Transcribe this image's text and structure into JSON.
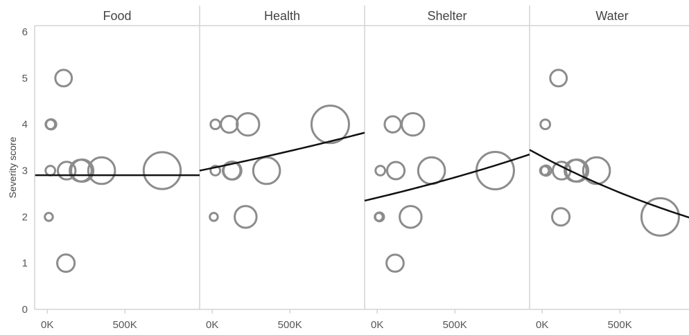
{
  "chart_data": {
    "type": "scatter",
    "ylabel": "Severity score",
    "xlabel": "",
    "ylim": [
      0,
      6
    ],
    "yticks": [
      0,
      1,
      2,
      3,
      4,
      5,
      6
    ],
    "xlim": [
      -50000,
      950000
    ],
    "xticks": [
      {
        "value": 0,
        "label": "0K"
      },
      {
        "value": 500000,
        "label": "500K"
      }
    ],
    "size_encoding": "x",
    "point_color": "#8c8c8c",
    "trend_color": "#111111",
    "facets": [
      {
        "name": "Food",
        "points": [
          {
            "x": 10000,
            "y": 2
          },
          {
            "x": 20000,
            "y": 3
          },
          {
            "x": 20000,
            "y": 4
          },
          {
            "x": 25000,
            "y": 4
          },
          {
            "x": 105000,
            "y": 5
          },
          {
            "x": 120000,
            "y": 1
          },
          {
            "x": 125000,
            "y": 3
          },
          {
            "x": 215000,
            "y": 3
          },
          {
            "x": 225000,
            "y": 3
          },
          {
            "x": 350000,
            "y": 3
          },
          {
            "x": 740000,
            "y": 3
          }
        ],
        "trend": {
          "start": 2.9,
          "end": 2.9,
          "type": "exp"
        }
      },
      {
        "name": "Health",
        "points": [
          {
            "x": 10000,
            "y": 2
          },
          {
            "x": 20000,
            "y": 3
          },
          {
            "x": 20000,
            "y": 4
          },
          {
            "x": 110000,
            "y": 4
          },
          {
            "x": 125000,
            "y": 3
          },
          {
            "x": 130000,
            "y": 3
          },
          {
            "x": 215000,
            "y": 2
          },
          {
            "x": 230000,
            "y": 4
          },
          {
            "x": 350000,
            "y": 3
          },
          {
            "x": 760000,
            "y": 4
          }
        ],
        "trend": {
          "start": 3.0,
          "end": 3.82,
          "type": "exp"
        }
      },
      {
        "name": "Shelter",
        "points": [
          {
            "x": 10000,
            "y": 2
          },
          {
            "x": 15000,
            "y": 2
          },
          {
            "x": 20000,
            "y": 3
          },
          {
            "x": 100000,
            "y": 4
          },
          {
            "x": 115000,
            "y": 1
          },
          {
            "x": 120000,
            "y": 3
          },
          {
            "x": 215000,
            "y": 2
          },
          {
            "x": 230000,
            "y": 4
          },
          {
            "x": 350000,
            "y": 3
          },
          {
            "x": 760000,
            "y": 3
          }
        ],
        "trend": {
          "start": 2.35,
          "end": 3.35,
          "type": "exp"
        }
      },
      {
        "name": "Water",
        "points": [
          {
            "x": 15000,
            "y": 3
          },
          {
            "x": 20000,
            "y": 4
          },
          {
            "x": 25000,
            "y": 3
          },
          {
            "x": 105000,
            "y": 5
          },
          {
            "x": 120000,
            "y": 2
          },
          {
            "x": 125000,
            "y": 3
          },
          {
            "x": 215000,
            "y": 3
          },
          {
            "x": 225000,
            "y": 3
          },
          {
            "x": 350000,
            "y": 3
          },
          {
            "x": 760000,
            "y": 2
          }
        ],
        "trend": {
          "start": 3.45,
          "end": 1.95,
          "type": "exp"
        }
      }
    ]
  }
}
